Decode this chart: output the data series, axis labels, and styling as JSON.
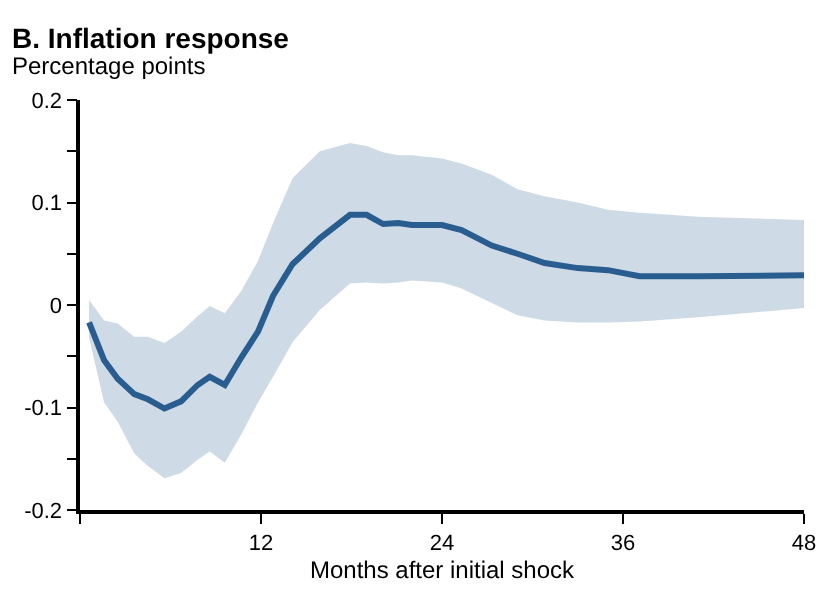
{
  "chart_data": {
    "type": "line",
    "title": "B. Inflation response",
    "ylabel": "Percentage points",
    "xlabel": "Months after initial shock",
    "x": [
      0.6,
      1.6,
      2.5,
      3.6,
      4.5,
      5.6,
      6.7,
      7.8,
      8.6,
      9.6,
      10.7,
      11.8,
      12.8,
      14.1,
      15.9,
      17.9,
      19,
      20.1,
      21.1,
      22,
      24,
      25.3,
      27.3,
      29,
      30.8,
      33,
      35,
      37.1,
      41,
      48
    ],
    "series": [
      {
        "color": "#2a5d8f",
        "values": [
          -0.017,
          -0.054,
          -0.072,
          -0.087,
          -0.092,
          -0.101,
          -0.094,
          -0.078,
          -0.07,
          -0.078,
          -0.051,
          -0.026,
          0.009,
          0.04,
          0.065,
          0.088,
          0.088,
          0.079,
          0.08,
          0.078,
          0.078,
          0.073,
          0.058,
          0.05,
          0.041,
          0.036,
          0.034,
          0.028,
          0.028,
          0.029
        ],
        "lower": [
          -0.032,
          -0.095,
          -0.114,
          -0.145,
          -0.157,
          -0.169,
          -0.164,
          -0.151,
          -0.143,
          -0.154,
          -0.126,
          -0.095,
          -0.07,
          -0.036,
          -0.005,
          0.021,
          0.022,
          0.021,
          0.022,
          0.024,
          0.022,
          0.016,
          0.002,
          -0.01,
          -0.015,
          -0.017,
          -0.017,
          -0.016,
          -0.012,
          -0.003
        ],
        "upper": [
          0.005,
          -0.015,
          -0.018,
          -0.031,
          -0.031,
          -0.037,
          -0.026,
          -0.011,
          -0.001,
          -0.008,
          0.014,
          0.043,
          0.08,
          0.124,
          0.15,
          0.158,
          0.155,
          0.149,
          0.146,
          0.146,
          0.143,
          0.138,
          0.127,
          0.113,
          0.106,
          0.1,
          0.093,
          0.09,
          0.086,
          0.083
        ]
      }
    ],
    "xlim": [
      0,
      48
    ],
    "xticks": [
      {
        "value": 0,
        "label": null
      },
      12,
      24,
      36,
      48
    ],
    "ylim": [
      -0.2,
      0.2
    ],
    "yticks": [
      -0.2,
      {
        "value": -0.15,
        "label": null
      },
      -0.1,
      {
        "value": -0.05,
        "label": null
      },
      0,
      {
        "value": 0.05,
        "label": null
      },
      0.1,
      {
        "value": 0.15,
        "label": null
      },
      0.2
    ],
    "line_style": "solid",
    "marker": "none"
  }
}
